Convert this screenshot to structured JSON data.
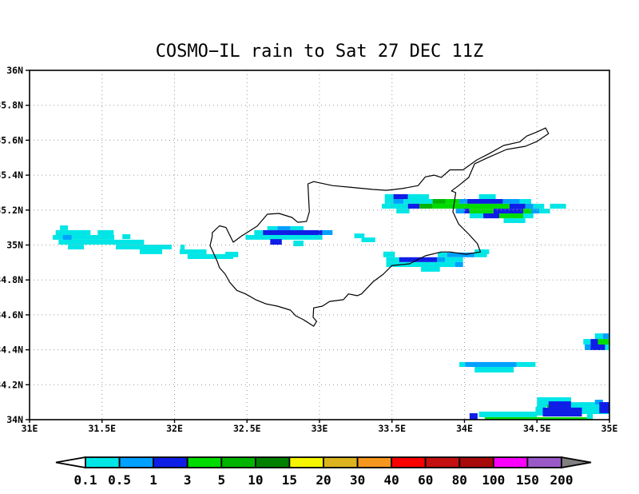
{
  "title": "COSMO−IL rain to Sat 27 DEC 11Z",
  "chart_data": {
    "type": "heatmap",
    "title": "COSMO−IL rain to Sat 27 DEC 11Z",
    "projection": "lon/lat map of Cyprus region",
    "lon_range": [
      31,
      35
    ],
    "lat_range": [
      34,
      36
    ],
    "grid": "dotted gridlines every 0.5 deg lon and 0.2 deg lat",
    "legend_position": "bottom colorbar",
    "x_ticks": [
      {
        "v": 31,
        "label": "31E"
      },
      {
        "v": 31.5,
        "label": "31.5E"
      },
      {
        "v": 32,
        "label": "32E"
      },
      {
        "v": 32.5,
        "label": "32.5E"
      },
      {
        "v": 33,
        "label": "33E"
      },
      {
        "v": 33.5,
        "label": "33.5E"
      },
      {
        "v": 34,
        "label": "34E"
      },
      {
        "v": 34.5,
        "label": "34.5E"
      },
      {
        "v": 35,
        "label": "35E"
      }
    ],
    "y_ticks": [
      {
        "v": 36,
        "label": "36N"
      },
      {
        "v": 35.8,
        "label": "35.8N"
      },
      {
        "v": 35.6,
        "label": "35.6N"
      },
      {
        "v": 35.4,
        "label": "35.4N"
      },
      {
        "v": 35.2,
        "label": "35.2N"
      },
      {
        "v": 35,
        "label": "35N"
      },
      {
        "v": 34.8,
        "label": "34.8N"
      },
      {
        "v": 34.6,
        "label": "34.6N"
      },
      {
        "v": 34.4,
        "label": "34.4N"
      },
      {
        "v": 34.2,
        "label": "34.2N"
      },
      {
        "v": 34,
        "label": "34N"
      }
    ],
    "palette": {
      "0.1": "#00e6e6",
      "0.5": "#00a0ff",
      "1": "#0f1ee6",
      "3": "#00dc00",
      "5": "#00b400",
      "10": "#008000",
      "15": "#f5f500",
      "20": "#dcb41e",
      "30": "#f5961e",
      "40": "#fa0000",
      "60": "#c41010",
      "80": "#a80a0a",
      "100": "#fa00fa",
      "150": "#9b59c8",
      "arrow_left": "#ffffff",
      "arrow_right": "#808080"
    },
    "rain_cells": [
      [
        "0.1",
        31.21,
        31.265,
        35.112,
        35.085
      ],
      [
        "0.1",
        31.18,
        31.42,
        35.085,
        35.057
      ],
      [
        "0.1",
        31.47,
        31.58,
        35.085,
        35.057
      ],
      [
        "0.1",
        31.16,
        31.585,
        35.057,
        35.03
      ],
      [
        "0.5",
        31.23,
        31.29,
        35.057,
        35.03
      ],
      [
        "0.1",
        31.64,
        31.695,
        35.062,
        35.034
      ],
      [
        "0.1",
        31.2,
        31.79,
        35.03,
        35.002
      ],
      [
        "0.1",
        31.265,
        31.375,
        35.002,
        34.975
      ],
      [
        "0.1",
        31.595,
        31.98,
        35.002,
        34.975
      ],
      [
        "0.1",
        32.04,
        32.07,
        35.002,
        34.975
      ],
      [
        "0.1",
        31.76,
        31.915,
        34.975,
        34.948
      ],
      [
        "0.1",
        32.035,
        32.22,
        34.975,
        34.948
      ],
      [
        "0.1",
        32.09,
        32.405,
        34.948,
        34.92
      ],
      [
        "0.1",
        32.35,
        32.44,
        34.961,
        34.93
      ],
      [
        "0.1",
        32.64,
        32.71,
        35.108,
        35.085
      ],
      [
        "0.5",
        32.71,
        32.8,
        35.108,
        35.085
      ],
      [
        "0.1",
        32.8,
        32.89,
        35.108,
        35.085
      ],
      [
        "0.1",
        32.55,
        32.61,
        35.085,
        35.057
      ],
      [
        "1",
        32.61,
        33.02,
        35.085,
        35.057
      ],
      [
        "0.5",
        33.02,
        33.09,
        35.085,
        35.057
      ],
      [
        "0.1",
        32.49,
        33.02,
        35.057,
        35.03
      ],
      [
        "1",
        32.66,
        32.74,
        35.034,
        35.002
      ],
      [
        "0.1",
        32.82,
        32.89,
        35.025,
        34.993
      ],
      [
        "0.1",
        33.24,
        33.31,
        35.066,
        35.039
      ],
      [
        "0.1",
        33.29,
        33.385,
        35.043,
        35.016
      ],
      [
        "0.1",
        33.45,
        33.51,
        35.291,
        35.263
      ],
      [
        "1",
        33.51,
        33.61,
        35.291,
        35.263
      ],
      [
        "0.1",
        33.61,
        33.755,
        35.291,
        35.263
      ],
      [
        "0.1",
        34.1,
        34.215,
        35.291,
        35.263
      ],
      [
        "0.1",
        33.45,
        33.51,
        35.263,
        35.236
      ],
      [
        "0.5",
        33.51,
        33.58,
        35.263,
        35.236
      ],
      [
        "0.1",
        33.58,
        33.78,
        35.263,
        35.236
      ],
      [
        "5",
        33.78,
        33.87,
        35.263,
        35.236
      ],
      [
        "3",
        33.87,
        33.965,
        35.263,
        35.236
      ],
      [
        "0.5",
        33.965,
        34.02,
        35.263,
        35.236
      ],
      [
        "1",
        34.02,
        34.265,
        35.263,
        35.236
      ],
      [
        "0.5",
        34.265,
        34.38,
        35.263,
        35.236
      ],
      [
        "0.1",
        34.38,
        34.46,
        35.263,
        35.236
      ],
      [
        "0.1",
        33.43,
        33.61,
        35.236,
        35.208
      ],
      [
        "1",
        33.61,
        33.69,
        35.236,
        35.208
      ],
      [
        "5",
        33.69,
        33.78,
        35.236,
        35.208
      ],
      [
        "3",
        33.78,
        34.31,
        35.236,
        35.208
      ],
      [
        "1",
        34.31,
        34.42,
        35.236,
        35.208
      ],
      [
        "0.5",
        34.42,
        34.475,
        35.236,
        35.208
      ],
      [
        "0.1",
        34.475,
        34.55,
        35.236,
        35.208
      ],
      [
        "0.1",
        34.59,
        34.7,
        35.236,
        35.208
      ],
      [
        "0.1",
        33.53,
        33.62,
        35.208,
        35.181
      ],
      [
        "0.5",
        33.94,
        34.0,
        35.208,
        35.181
      ],
      [
        "1",
        34.0,
        34.035,
        35.208,
        35.181
      ],
      [
        "3",
        34.035,
        34.2,
        35.208,
        35.181
      ],
      [
        "1",
        34.2,
        34.405,
        35.208,
        35.181
      ],
      [
        "3",
        34.405,
        34.46,
        35.208,
        35.181
      ],
      [
        "0.5",
        34.46,
        34.515,
        35.208,
        35.181
      ],
      [
        "0.1",
        34.515,
        34.59,
        35.208,
        35.181
      ],
      [
        "0.1",
        34.035,
        34.13,
        35.181,
        35.153
      ],
      [
        "1",
        34.13,
        34.24,
        35.181,
        35.153
      ],
      [
        "3",
        34.24,
        34.405,
        35.181,
        35.153
      ],
      [
        "0.1",
        34.405,
        34.475,
        35.181,
        35.153
      ],
      [
        "0.1",
        34.27,
        34.42,
        35.153,
        35.126
      ],
      [
        "0.1",
        34.07,
        34.17,
        34.975,
        34.948
      ],
      [
        "0.1",
        33.44,
        33.52,
        34.962,
        34.93
      ],
      [
        "0.1",
        33.815,
        33.88,
        34.957,
        34.93
      ],
      [
        "0.5",
        33.88,
        34.07,
        34.957,
        34.93
      ],
      [
        "0.1",
        34.07,
        34.155,
        34.957,
        34.93
      ],
      [
        "0.1",
        33.46,
        33.55,
        34.93,
        34.902
      ],
      [
        "1",
        33.55,
        33.81,
        34.93,
        34.902
      ],
      [
        "0.5",
        33.81,
        33.865,
        34.93,
        34.902
      ],
      [
        "0.1",
        33.865,
        33.99,
        34.93,
        34.902
      ],
      [
        "0.1",
        33.46,
        33.935,
        34.902,
        34.874
      ],
      [
        "0.5",
        33.935,
        33.99,
        34.902,
        34.874
      ],
      [
        "0.1",
        33.7,
        33.83,
        34.874,
        34.847
      ],
      [
        "0.1",
        33.965,
        34.005,
        34.33,
        34.302
      ],
      [
        "0.5",
        34.005,
        34.36,
        34.33,
        34.302
      ],
      [
        "0.1",
        34.36,
        34.49,
        34.33,
        34.302
      ],
      [
        "0.1",
        34.07,
        34.34,
        34.302,
        34.27
      ],
      [
        "0.1",
        34.9,
        34.955,
        34.494,
        34.462
      ],
      [
        "0.5",
        34.955,
        34.995,
        34.494,
        34.462
      ],
      [
        "0.1",
        34.82,
        34.87,
        34.462,
        34.43
      ],
      [
        "1",
        34.87,
        34.92,
        34.462,
        34.43
      ],
      [
        "3",
        34.92,
        34.995,
        34.462,
        34.43
      ],
      [
        "0.5",
        34.83,
        34.87,
        34.43,
        34.398
      ],
      [
        "1",
        34.87,
        34.97,
        34.43,
        34.398
      ],
      [
        "0.1",
        34.97,
        34.995,
        34.43,
        34.398
      ],
      [
        "0.1",
        34.5,
        34.735,
        34.128,
        34.073
      ],
      [
        "0.1",
        34.49,
        34.56,
        34.073,
        34.023
      ],
      [
        "0.1",
        34.735,
        35.0,
        34.1,
        34.032
      ],
      [
        "3",
        34.57,
        34.67,
        34.087,
        34.055
      ],
      [
        "1",
        34.58,
        34.735,
        34.105,
        34.023
      ],
      [
        "1",
        34.54,
        34.81,
        34.069,
        34.018
      ],
      [
        "0.5",
        34.9,
        34.955,
        34.114,
        34.087
      ],
      [
        "1",
        34.93,
        35.0,
        34.1,
        34.037
      ],
      [
        "0.1",
        34.1,
        34.5,
        34.046,
        34.014
      ],
      [
        "1",
        34.035,
        34.09,
        34.037,
        34.0
      ],
      [
        "3",
        34.14,
        34.885,
        34.014,
        34.0
      ],
      [
        "0.1",
        34.845,
        34.885,
        34.037,
        34.005
      ]
    ],
    "coastline": [
      [
        32.26,
        35.07
      ],
      [
        32.31,
        35.11
      ],
      [
        32.355,
        35.1
      ],
      [
        32.405,
        35.016
      ],
      [
        32.465,
        35.053
      ],
      [
        32.49,
        35.066
      ],
      [
        32.57,
        35.108
      ],
      [
        32.64,
        35.176
      ],
      [
        32.72,
        35.181
      ],
      [
        32.81,
        35.158
      ],
      [
        32.85,
        35.13
      ],
      [
        32.91,
        35.135
      ],
      [
        32.93,
        35.19
      ],
      [
        32.92,
        35.35
      ],
      [
        32.96,
        35.363
      ],
      [
        33.09,
        35.34
      ],
      [
        33.22,
        35.33
      ],
      [
        33.37,
        35.318
      ],
      [
        33.46,
        35.313
      ],
      [
        33.57,
        35.323
      ],
      [
        33.68,
        35.34
      ],
      [
        33.73,
        35.39
      ],
      [
        33.79,
        35.4
      ],
      [
        33.84,
        35.387
      ],
      [
        33.9,
        35.43
      ],
      [
        33.99,
        35.43
      ],
      [
        34.085,
        35.487
      ],
      [
        34.17,
        35.523
      ],
      [
        34.27,
        35.57
      ],
      [
        34.38,
        35.59
      ],
      [
        34.43,
        35.624
      ],
      [
        34.5,
        35.647
      ],
      [
        34.56,
        35.67
      ],
      [
        34.58,
        35.638
      ],
      [
        34.5,
        35.593
      ],
      [
        34.42,
        35.565
      ],
      [
        34.29,
        35.547
      ],
      [
        34.16,
        35.5
      ],
      [
        34.07,
        35.465
      ],
      [
        34.03,
        35.387
      ],
      [
        33.96,
        35.34
      ],
      [
        33.91,
        35.31
      ],
      [
        33.94,
        35.3
      ],
      [
        33.92,
        35.19
      ],
      [
        33.96,
        35.12
      ],
      [
        34.03,
        35.062
      ],
      [
        34.09,
        35.007
      ],
      [
        34.11,
        34.96
      ],
      [
        34.01,
        34.947
      ],
      [
        33.9,
        34.96
      ],
      [
        33.84,
        34.96
      ],
      [
        33.73,
        34.938
      ],
      [
        33.62,
        34.892
      ],
      [
        33.5,
        34.883
      ],
      [
        33.44,
        34.833
      ],
      [
        33.37,
        34.79
      ],
      [
        33.29,
        34.72
      ],
      [
        33.26,
        34.71
      ],
      [
        33.2,
        34.72
      ],
      [
        33.165,
        34.687
      ],
      [
        33.07,
        34.677
      ],
      [
        33.02,
        34.65
      ],
      [
        32.96,
        34.64
      ],
      [
        32.956,
        34.586
      ],
      [
        32.98,
        34.563
      ],
      [
        32.96,
        34.535
      ],
      [
        32.89,
        34.572
      ],
      [
        32.835,
        34.595
      ],
      [
        32.8,
        34.627
      ],
      [
        32.71,
        34.65
      ],
      [
        32.63,
        34.663
      ],
      [
        32.56,
        34.687
      ],
      [
        32.49,
        34.72
      ],
      [
        32.43,
        34.74
      ],
      [
        32.38,
        34.787
      ],
      [
        32.35,
        34.833
      ],
      [
        32.31,
        34.87
      ],
      [
        32.295,
        34.906
      ],
      [
        32.27,
        34.952
      ],
      [
        32.245,
        34.997
      ],
      [
        32.26,
        35.05
      ]
    ]
  },
  "colorbar": {
    "labels": [
      "0.1",
      "0.5",
      "1",
      "3",
      "5",
      "10",
      "15",
      "20",
      "30",
      "40",
      "60",
      "80",
      "100",
      "150",
      "200"
    ],
    "segment_colors": [
      "#00e6e6",
      "#00a0ff",
      "#0f1ee6",
      "#00dc00",
      "#00b400",
      "#008000",
      "#f5f500",
      "#dcb41e",
      "#f5961e",
      "#fa0000",
      "#c41010",
      "#a80a0a",
      "#fa00fa",
      "#9b59c8"
    ]
  }
}
